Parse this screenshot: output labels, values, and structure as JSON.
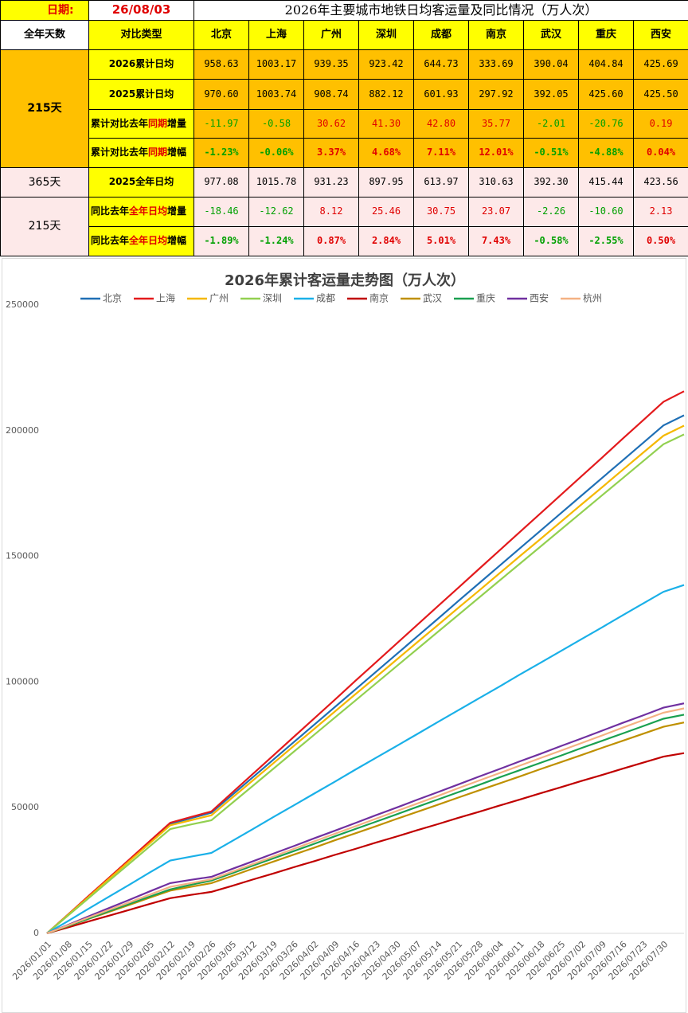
{
  "table": {
    "date_label": "日期:",
    "date": "26/08/03",
    "title": "2026年主要城市地铁日均客运量及同比情况（万人次）",
    "header": [
      "全年天数",
      "对比类型",
      "北京",
      "上海",
      "广州",
      "深圳",
      "成都",
      "南京",
      "武汉",
      "重庆",
      "西安"
    ],
    "groups": [
      {
        "days": "215天",
        "rows": [
          {
            "type": [
              "2026累计日均"
            ],
            "values": [
              "958.63",
              "1003.17",
              "939.35",
              "923.42",
              "644.73",
              "333.69",
              "390.04",
              "404.84",
              "425.69"
            ]
          },
          {
            "type": [
              "2025累计日均"
            ],
            "values": [
              "970.60",
              "1003.74",
              "908.74",
              "882.12",
              "601.93",
              "297.92",
              "392.05",
              "425.60",
              "425.50"
            ]
          },
          {
            "type": [
              "累计对比去年",
              "同期",
              "增量"
            ],
            "values": [
              "-11.97",
              "-0.58",
              "30.62",
              "41.30",
              "42.80",
              "35.77",
              "-2.01",
              "-20.76",
              "0.19"
            ]
          },
          {
            "type": [
              "累计对比去年",
              "同期",
              "增幅"
            ],
            "values": [
              "-1.23%",
              "-0.06%",
              "3.37%",
              "4.68%",
              "7.11%",
              "12.01%",
              "-0.51%",
              "-4.88%",
              "0.04%"
            ]
          }
        ]
      },
      {
        "days": "365天",
        "rows": [
          {
            "type": [
              "2025全年日均"
            ],
            "values": [
              "977.08",
              "1015.78",
              "931.23",
              "897.95",
              "613.97",
              "310.63",
              "392.30",
              "415.44",
              "423.56"
            ]
          }
        ]
      },
      {
        "days": "215天",
        "rows": [
          {
            "type": [
              "同比去年",
              "全年日均",
              "增量"
            ],
            "values": [
              "-18.46",
              "-12.62",
              "8.12",
              "25.46",
              "30.75",
              "23.07",
              "-2.26",
              "-10.60",
              "2.13"
            ]
          },
          {
            "type": [
              "同比去年",
              "全年日均",
              "增幅"
            ],
            "values": [
              "-1.89%",
              "-1.24%",
              "0.87%",
              "2.84%",
              "5.01%",
              "7.43%",
              "-0.58%",
              "-2.55%",
              "0.50%"
            ]
          }
        ]
      }
    ]
  },
  "chart_data": {
    "type": "line",
    "title": "2026年累计客运量走势图（万人次）",
    "legend": "top",
    "grid": false,
    "categories": [
      "2026/01/01",
      "2026/01/08",
      "2026/01/15",
      "2026/01/22",
      "2026/01/29",
      "2026/02/05",
      "2026/02/12",
      "2026/02/19",
      "2026/02/26",
      "2026/03/05",
      "2026/03/12",
      "2026/03/19",
      "2026/03/26",
      "2026/04/02",
      "2026/04/09",
      "2026/04/16",
      "2026/04/23",
      "2026/04/30",
      "2026/05/07",
      "2026/05/14",
      "2026/05/21",
      "2026/05/28",
      "2026/06/04",
      "2026/06/11",
      "2026/06/18",
      "2026/06/25",
      "2026/07/02",
      "2026/07/09",
      "2026/07/16",
      "2026/07/23",
      "2026/07/30",
      null
    ],
    "ylim": [
      0,
      250000
    ],
    "yticks": [
      0,
      50000,
      100000,
      150000,
      200000,
      250000
    ],
    "series": [
      {
        "name": "北京",
        "color": "#1f6fb5",
        "values": [
          0,
          7300,
          14500,
          21800,
          29000,
          36300,
          43500,
          45800,
          48000,
          55000,
          62000,
          69000,
          76000,
          83000,
          90000,
          97000,
          104000,
          111000,
          118000,
          125000,
          132100,
          139100,
          146100,
          153100,
          160100,
          167100,
          174100,
          181100,
          188100,
          195100,
          202100,
          206100
        ]
      },
      {
        "name": "上海",
        "color": "#e31a1c",
        "values": [
          0,
          7300,
          14700,
          22000,
          29300,
          36700,
          44000,
          46300,
          48500,
          55900,
          63300,
          70700,
          78100,
          85500,
          92900,
          100400,
          107800,
          115200,
          122600,
          130000,
          137400,
          144800,
          152200,
          159600,
          167000,
          174400,
          181800,
          189200,
          196700,
          204100,
          211500,
          215700
        ]
      },
      {
        "name": "广州",
        "color": "#f5b800",
        "values": [
          0,
          7200,
          14300,
          21500,
          28700,
          35800,
          43000,
          45000,
          47000,
          53900,
          60700,
          67600,
          74500,
          81300,
          88200,
          95100,
          101900,
          108800,
          115700,
          122500,
          129400,
          136200,
          143100,
          150000,
          156800,
          163700,
          170600,
          177400,
          184300,
          191200,
          198000,
          202000
        ]
      },
      {
        "name": "深圳",
        "color": "#92d050",
        "values": [
          0,
          6900,
          13800,
          20800,
          27700,
          34600,
          41500,
          43300,
          45000,
          51800,
          58600,
          65400,
          72200,
          79000,
          85800,
          92600,
          99400,
          106200,
          113000,
          119800,
          126600,
          133400,
          140200,
          147000,
          153800,
          160600,
          167400,
          174200,
          181000,
          187800,
          194600,
          198500
        ]
      },
      {
        "name": "成都",
        "color": "#1ab0e8",
        "values": [
          0,
          4800,
          9700,
          14500,
          19300,
          24200,
          29000,
          30500,
          32000,
          36700,
          41400,
          46200,
          50900,
          55600,
          60300,
          65100,
          69800,
          74500,
          79200,
          84000,
          88700,
          93400,
          98100,
          102900,
          107600,
          112300,
          117000,
          121700,
          126500,
          131200,
          135900,
          138600
        ]
      },
      {
        "name": "南京",
        "color": "#c00000",
        "values": [
          0,
          2300,
          4700,
          7000,
          9300,
          11700,
          14000,
          15300,
          16500,
          18900,
          21400,
          23800,
          26300,
          28700,
          31200,
          33600,
          36100,
          38500,
          41000,
          43400,
          45900,
          48300,
          50800,
          53200,
          55700,
          58100,
          60600,
          63000,
          65500,
          67900,
          70300,
          71700
        ]
      },
      {
        "name": "武汉",
        "color": "#bf9000",
        "values": [
          0,
          2800,
          5700,
          8500,
          11300,
          14200,
          17000,
          18500,
          20000,
          22800,
          25700,
          28500,
          31300,
          34100,
          37000,
          39800,
          42600,
          45500,
          48300,
          51100,
          54000,
          56800,
          59600,
          62400,
          65300,
          68100,
          70900,
          73800,
          76600,
          79400,
          82200,
          83900
        ]
      },
      {
        "name": "重庆",
        "color": "#1aa050",
        "values": [
          0,
          2900,
          5800,
          8800,
          11700,
          14600,
          17500,
          19300,
          21000,
          23900,
          26900,
          29800,
          32700,
          35600,
          38600,
          41500,
          44400,
          47300,
          50300,
          53200,
          56100,
          59000,
          62000,
          64900,
          67800,
          70700,
          73700,
          76600,
          79500,
          82400,
          85400,
          87000
        ]
      },
      {
        "name": "西安",
        "color": "#7030a0",
        "values": [
          0,
          3300,
          6700,
          10000,
          13300,
          16700,
          20000,
          21300,
          22500,
          25600,
          28600,
          31700,
          34700,
          37800,
          40800,
          43900,
          47000,
          50000,
          53100,
          56100,
          59200,
          62300,
          65300,
          68400,
          71400,
          74500,
          77500,
          80600,
          83700,
          86700,
          89800,
          91500
        ]
      },
      {
        "name": "杭州",
        "color": "#f4b183",
        "values": [
          0,
          3100,
          6200,
          9300,
          12300,
          15400,
          18500,
          20000,
          21500,
          24500,
          27500,
          30500,
          33600,
          36600,
          39600,
          42600,
          45600,
          48600,
          51600,
          54600,
          57700,
          60700,
          63700,
          66700,
          69700,
          72700,
          75700,
          78700,
          81800,
          84800,
          87800,
          89500
        ]
      }
    ]
  }
}
